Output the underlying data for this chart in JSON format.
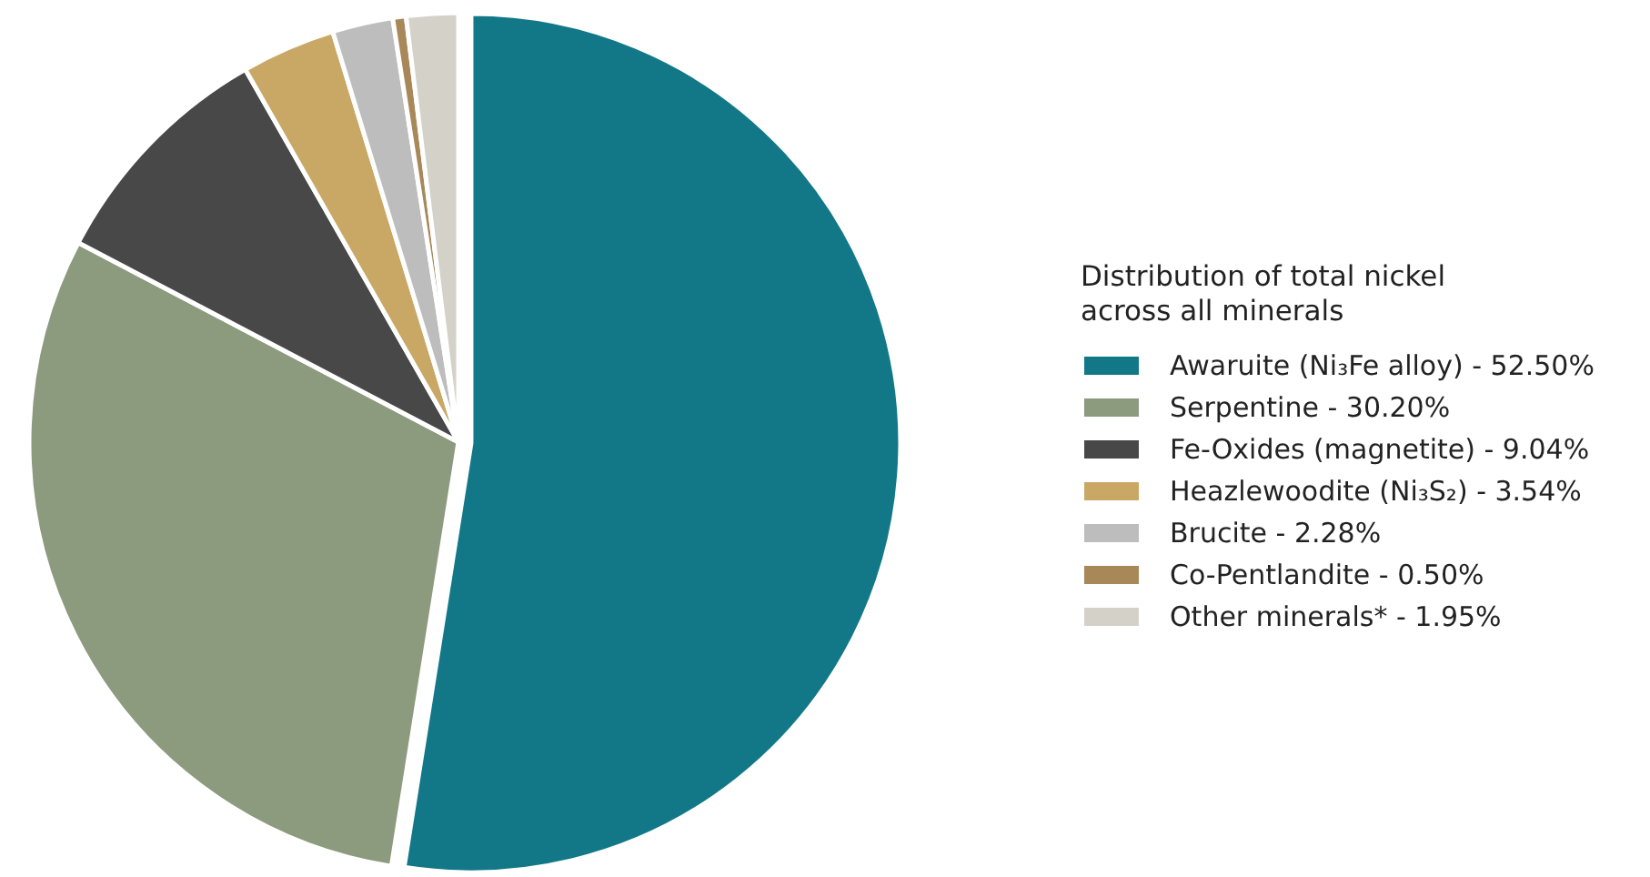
{
  "chart_data": {
    "type": "pie",
    "legend_title": "Distribution of total nickel across all minerals",
    "categories": [
      "Awaruite (Ni₃Fe alloy)",
      "Serpentine",
      "Fe-Oxides (magnetite)",
      "Heazlewoodite (Ni₃S₂)",
      "Brucite",
      "Co-Pentlandite",
      "Other minerals*"
    ],
    "values": [
      52.5,
      30.2,
      9.04,
      3.54,
      2.28,
      0.5,
      1.95
    ],
    "value_labels": [
      "52.50%",
      "30.20%",
      "9.04%",
      "3.54%",
      "2.28%",
      "0.50%",
      "1.95%"
    ],
    "colors": [
      "#127888",
      "#8c9a7e",
      "#484848",
      "#c9a866",
      "#bdbdbd",
      "#a88858",
      "#d4d2c8"
    ],
    "legend": "right"
  }
}
